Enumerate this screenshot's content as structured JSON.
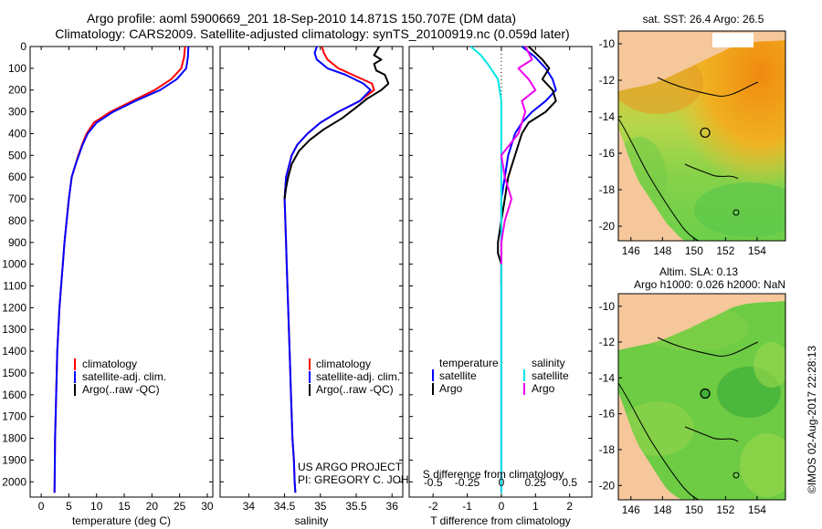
{
  "header": {
    "title_line1": "Argo profile: aoml 5900669_201 18-Sep-2010 14.871S 150.707E (DM data)",
    "title_line2": "Climatology: CARS2009. Satellite-adjusted climatology: synTS_20100919.nc (0.059d later)"
  },
  "colors": {
    "climatology": "#ff0000",
    "satellite": "#0000ff",
    "argo": "#000000",
    "salinity_satellite": "#00e5e5",
    "salinity_argo": "#ee00ee",
    "land": "#f5c79a"
  },
  "chart_data": [
    {
      "id": "temperature",
      "type": "line",
      "xlabel": "temperature (deg C)",
      "ylabel": "",
      "xlim": [
        -2,
        31
      ],
      "ylim": [
        2070,
        0
      ],
      "xticks": [
        0,
        5,
        10,
        15,
        20,
        25,
        30
      ],
      "xtick_labels": [
        "0",
        "5",
        "10",
        "15",
        "20",
        "25",
        "30"
      ],
      "yticks": [
        0,
        100,
        200,
        300,
        400,
        500,
        600,
        700,
        800,
        900,
        1000,
        1100,
        1200,
        1300,
        1400,
        1500,
        1600,
        1700,
        1800,
        1900,
        2000
      ],
      "ytick_labels": [
        "0",
        "100",
        "200",
        "300",
        "400",
        "500",
        "600",
        "700",
        "800",
        "900",
        "1000",
        "1100",
        "1200",
        "1300",
        "1400",
        "1500",
        "1600",
        "1700",
        "1800",
        "1900",
        "2000"
      ],
      "legend": [
        "climatology",
        "satellite-adj. clim.",
        "Argo(..raw -QC)"
      ],
      "legend_position": "lower-right",
      "series": [
        {
          "name": "climatology",
          "color": "#ff0000",
          "x": [
            26.0,
            25.8,
            25.3,
            23.5,
            20.5,
            16.5,
            12.5,
            9.5,
            8.2,
            7.4,
            6.7,
            6.1,
            5.5,
            5.0,
            4.6,
            4.2,
            3.9,
            3.6,
            3.3,
            3.1,
            2.9,
            2.7,
            2.5,
            2.4
          ],
          "y": [
            0,
            50,
            100,
            150,
            200,
            250,
            300,
            350,
            400,
            450,
            500,
            550,
            600,
            700,
            800,
            900,
            1000,
            1100,
            1200,
            1300,
            1400,
            1600,
            1800,
            2050
          ]
        },
        {
          "name": "satellite-adj. clim.",
          "color": "#0000ff",
          "x": [
            26.6,
            26.5,
            26.2,
            24.5,
            21.5,
            17.0,
            13.0,
            10.0,
            8.4,
            7.5,
            6.8,
            6.1,
            5.5,
            5.0,
            4.6,
            4.2,
            3.9,
            3.6,
            3.3,
            3.1,
            2.9,
            2.7,
            2.5,
            2.4
          ],
          "y": [
            0,
            50,
            100,
            150,
            200,
            250,
            300,
            350,
            400,
            450,
            500,
            550,
            600,
            700,
            800,
            900,
            1000,
            1100,
            1200,
            1300,
            1400,
            1600,
            1800,
            2050
          ]
        }
      ]
    },
    {
      "id": "salinity",
      "type": "line",
      "xlabel": "salinity",
      "ylabel": "",
      "xlim": [
        33.6,
        36.15
      ],
      "ylim": [
        2070,
        0
      ],
      "xticks": [
        34,
        34.5,
        35,
        35.5,
        36
      ],
      "xtick_labels": [
        "34",
        "34.5",
        "35",
        "35.5",
        "36"
      ],
      "legend": [
        "climatology",
        "satellite-adj. clim.",
        "Argo(..raw -QC)"
      ],
      "legend_position": "lower-right",
      "series": [
        {
          "name": "climatology",
          "color": "#ff0000",
          "x": [
            35.02,
            35.05,
            35.1,
            35.25,
            35.45,
            35.72,
            35.75,
            35.55,
            35.25,
            35.0,
            34.82,
            34.68,
            34.6,
            34.52,
            34.5,
            34.51,
            34.52,
            34.53,
            34.55,
            34.57,
            34.59,
            34.61,
            34.63,
            34.64,
            34.65
          ],
          "y": [
            0,
            30,
            60,
            100,
            130,
            170,
            200,
            250,
            300,
            350,
            400,
            450,
            500,
            600,
            700,
            800,
            900,
            1000,
            1200,
            1400,
            1600,
            1800,
            1900,
            2000,
            2050
          ]
        },
        {
          "name": "satellite-adj. clim.",
          "color": "#0000ff",
          "x": [
            34.95,
            34.92,
            34.95,
            35.1,
            35.35,
            35.6,
            35.7,
            35.55,
            35.25,
            35.0,
            34.82,
            34.68,
            34.6,
            34.52,
            34.5,
            34.51,
            34.52,
            34.53,
            34.55,
            34.57,
            34.59,
            34.61,
            34.63,
            34.64,
            34.65
          ],
          "y": [
            0,
            30,
            60,
            100,
            130,
            170,
            200,
            250,
            300,
            350,
            400,
            450,
            500,
            600,
            700,
            800,
            900,
            1000,
            1200,
            1400,
            1600,
            1800,
            1900,
            2000,
            2050
          ]
        },
        {
          "name": "Argo(..raw -QC)",
          "color": "#000000",
          "x": [
            35.82,
            35.75,
            35.85,
            35.75,
            35.78,
            35.9,
            35.95,
            35.85,
            35.65,
            35.5,
            35.3,
            35.05,
            34.85,
            34.7,
            34.6,
            34.55,
            34.52,
            34.5
          ],
          "y": [
            0,
            40,
            60,
            80,
            110,
            130,
            170,
            200,
            240,
            280,
            330,
            380,
            430,
            480,
            540,
            600,
            650,
            700
          ]
        }
      ]
    },
    {
      "id": "difference",
      "type": "line",
      "xlabel": "T difference from climatology",
      "xlabel_secondary": "S difference from climatology",
      "xlim": [
        -2.7,
        2.65
      ],
      "ylim": [
        2070,
        0
      ],
      "xticks": [
        -2,
        -1,
        0,
        1,
        2
      ],
      "xtick_labels": [
        "-2",
        "-1",
        "0",
        "1",
        "2"
      ],
      "s_xtick_labels": [
        "-0.5",
        "-0.25",
        "0",
        "0.25",
        "0.5"
      ],
      "legend_temperature_title": "temperature",
      "legend_temperature": [
        "satellite",
        "Argo"
      ],
      "legend_salinity_title": "salinity",
      "legend_salinity": [
        "satellite",
        "Argo"
      ],
      "series": [
        {
          "name": "T satellite",
          "color": "#0000ff",
          "x": [
            0.6,
            1.0,
            1.3,
            1.5,
            1.6,
            1.3,
            0.9,
            0.6,
            0.4,
            0.2,
            0.1,
            0.0,
            0.0
          ],
          "y": [
            0,
            50,
            100,
            150,
            200,
            250,
            300,
            350,
            400,
            500,
            600,
            700,
            2050
          ]
        },
        {
          "name": "T Argo",
          "color": "#000000",
          "x": [
            0.8,
            1.2,
            1.4,
            1.2,
            1.5,
            1.6,
            1.3,
            0.8,
            0.6,
            0.5,
            0.4,
            0.3,
            0.2,
            0.1,
            0.0,
            -0.1,
            -0.1,
            0.0,
            0.0
          ],
          "y": [
            0,
            60,
            100,
            150,
            200,
            250,
            300,
            350,
            400,
            450,
            500,
            550,
            600,
            700,
            800,
            900,
            950,
            1000,
            1100
          ]
        },
        {
          "name": "S satellite",
          "color": "#00e5e5",
          "x": [
            -0.9,
            -0.6,
            -0.4,
            -0.1,
            0.0,
            0.0
          ],
          "y": [
            0,
            40,
            80,
            150,
            250,
            2050
          ]
        },
        {
          "name": "S Argo",
          "color": "#ee00ee",
          "x": [
            0.7,
            0.9,
            0.5,
            0.8,
            1.0,
            0.6,
            0.7,
            0.5,
            0.0,
            0.1,
            0.3,
            0.1,
            0.0,
            0.0
          ],
          "y": [
            0,
            60,
            100,
            150,
            200,
            250,
            300,
            400,
            500,
            600,
            700,
            800,
            900,
            1000
          ]
        }
      ]
    },
    {
      "id": "map_sst",
      "type": "heatmap",
      "title": "sat. SST: 26.4 Argo: 26.5",
      "xticks": [
        146,
        148,
        150,
        152,
        154
      ],
      "xtick_labels": [
        "146",
        "148",
        "150",
        "152",
        "154"
      ],
      "yticks": [
        -10,
        -12,
        -14,
        -16,
        -18,
        -20
      ],
      "ytick_labels": [
        "-10",
        "-12",
        "-14",
        "-16",
        "-18",
        "-20"
      ],
      "xlim": [
        145.2,
        155.8
      ],
      "ylim": [
        -20.8,
        -9.3
      ],
      "marker": {
        "lon": 150.707,
        "lat": -14.871
      }
    },
    {
      "id": "map_sla",
      "type": "heatmap",
      "title_line1": "Altim. SLA: 0.13",
      "title_line2": "Argo h1000: 0.026 h2000: NaN",
      "xticks": [
        146,
        148,
        150,
        152,
        154
      ],
      "xtick_labels": [
        "146",
        "148",
        "150",
        "152",
        "154"
      ],
      "yticks": [
        -10,
        -12,
        -14,
        -16,
        -18,
        -20
      ],
      "ytick_labels": [
        "-10",
        "-12",
        "-14",
        "-16",
        "-18",
        "-20"
      ],
      "xlim": [
        145.2,
        155.8
      ],
      "ylim": [
        -20.8,
        -9.3
      ],
      "marker": {
        "lon": 150.707,
        "lat": -14.871
      }
    }
  ],
  "annotations": {
    "project_line1": "US ARGO PROJECT",
    "project_line2": "PI: GREGORY C. JOHNSON",
    "watermark": "©IMOS 02-Aug-2017 22:28:13"
  }
}
